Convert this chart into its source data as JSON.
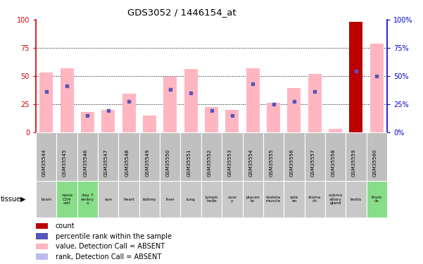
{
  "title": "GDS3052 / 1446154_at",
  "gsm_labels": [
    "GSM35544",
    "GSM35545",
    "GSM35546",
    "GSM35547",
    "GSM35548",
    "GSM35549",
    "GSM35550",
    "GSM35551",
    "GSM35552",
    "GSM35553",
    "GSM35554",
    "GSM35555",
    "GSM35556",
    "GSM35557",
    "GSM35558",
    "GSM35559",
    "GSM35560"
  ],
  "tissue_labels": [
    "brain",
    "naive\nCD4\ncell",
    "day 7\nembry\no",
    "eye",
    "heart",
    "kidney",
    "liver",
    "lung",
    "lymph\nnode",
    "ovar\ny",
    "placen\nta",
    "skeleta\nmuscle",
    "sple\nen",
    "stoma\nch",
    "subma\nxillary\ngland",
    "testis",
    "thym\nus"
  ],
  "tissue_green": [
    false,
    true,
    true,
    false,
    false,
    false,
    false,
    false,
    false,
    false,
    false,
    false,
    false,
    false,
    false,
    false,
    true
  ],
  "pink_bars": [
    53,
    57,
    18,
    20,
    34,
    15,
    49,
    56,
    22,
    20,
    57,
    26,
    39,
    52,
    3,
    98,
    79
  ],
  "blue_dots": [
    36,
    41,
    15,
    19,
    27,
    0,
    38,
    35,
    19,
    15,
    43,
    25,
    27,
    36,
    0,
    54,
    50
  ],
  "red_bar_index": 15,
  "ylim": [
    0,
    100
  ],
  "yticks": [
    0,
    25,
    50,
    75,
    100
  ],
  "bar_width": 0.65,
  "pink_color": "#FFB6C1",
  "red_color": "#BB0000",
  "blue_color": "#5555BB",
  "left_axis_color": "#CC0000",
  "right_axis_color": "#0000CC",
  "tissue_row_gray": "#C8C8C8",
  "tissue_row_green": "#88DD88",
  "gsm_row_color": "#C0C0C0",
  "legend_items": [
    {
      "color": "#BB0000",
      "label": "count"
    },
    {
      "color": "#5555BB",
      "label": "percentile rank within the sample"
    },
    {
      "color": "#FFB6C1",
      "label": "value, Detection Call = ABSENT"
    },
    {
      "color": "#BBBBEE",
      "label": "rank, Detection Call = ABSENT"
    }
  ]
}
